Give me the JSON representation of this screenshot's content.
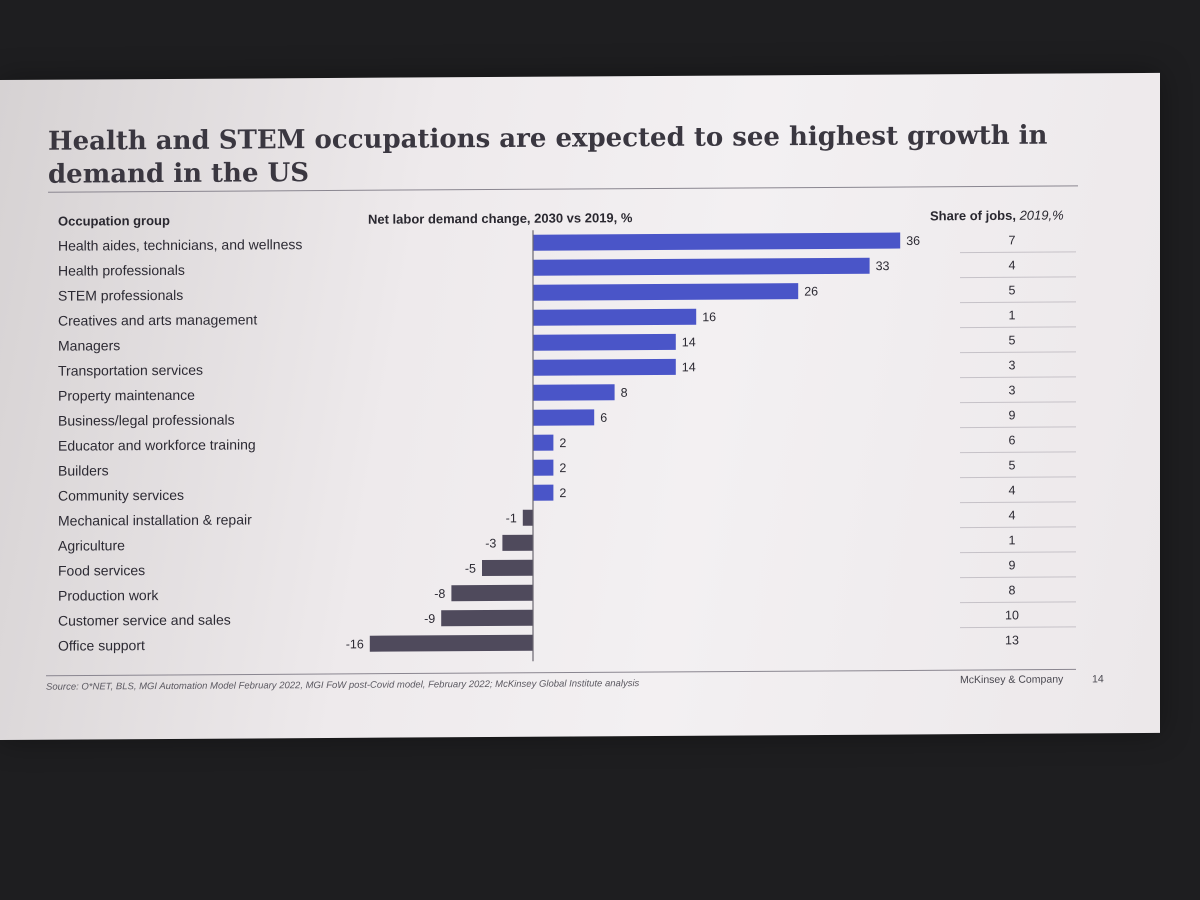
{
  "slide": {
    "title": "Health and STEM occupations are expected to see highest growth in demand in the US",
    "col_occupation": "Occupation group",
    "col_change": "Net labor demand change, 2030 vs 2019, %",
    "col_share_main": "Share of jobs, ",
    "col_share_unit": "2019,%",
    "source": "Source: O*NET, BLS, MGI Automation Model February 2022, MGI FoW post-Covid model, February 2022; McKinsey Global Institute analysis",
    "brand": "McKinsey & Company",
    "page": "14"
  },
  "colors": {
    "positive": "#4a55c8",
    "negative": "#4f4a5c"
  },
  "chart_data": {
    "type": "bar",
    "orientation": "horizontal",
    "title": "Health and STEM occupations are expected to see highest growth in demand in the US",
    "xlabel": "Net labor demand change, 2030 vs 2019, %",
    "categories": [
      "Health aides, technicians, and wellness",
      "Health professionals",
      "STEM professionals",
      "Creatives and arts management",
      "Managers",
      "Transportation services",
      "Property maintenance",
      "Business/legal professionals",
      "Educator and workforce training",
      "Builders",
      "Community services",
      "Mechanical installation & repair",
      "Agriculture",
      "Food services",
      "Production work",
      "Customer service and sales",
      "Office support"
    ],
    "values": [
      36,
      33,
      26,
      16,
      14,
      14,
      8,
      6,
      2,
      2,
      2,
      -1,
      -3,
      -5,
      -8,
      -9,
      -16
    ],
    "share_of_jobs": [
      7,
      4,
      5,
      1,
      5,
      3,
      3,
      9,
      6,
      5,
      4,
      4,
      1,
      9,
      8,
      10,
      13
    ],
    "xlim": [
      -16,
      36
    ],
    "grid": false
  }
}
